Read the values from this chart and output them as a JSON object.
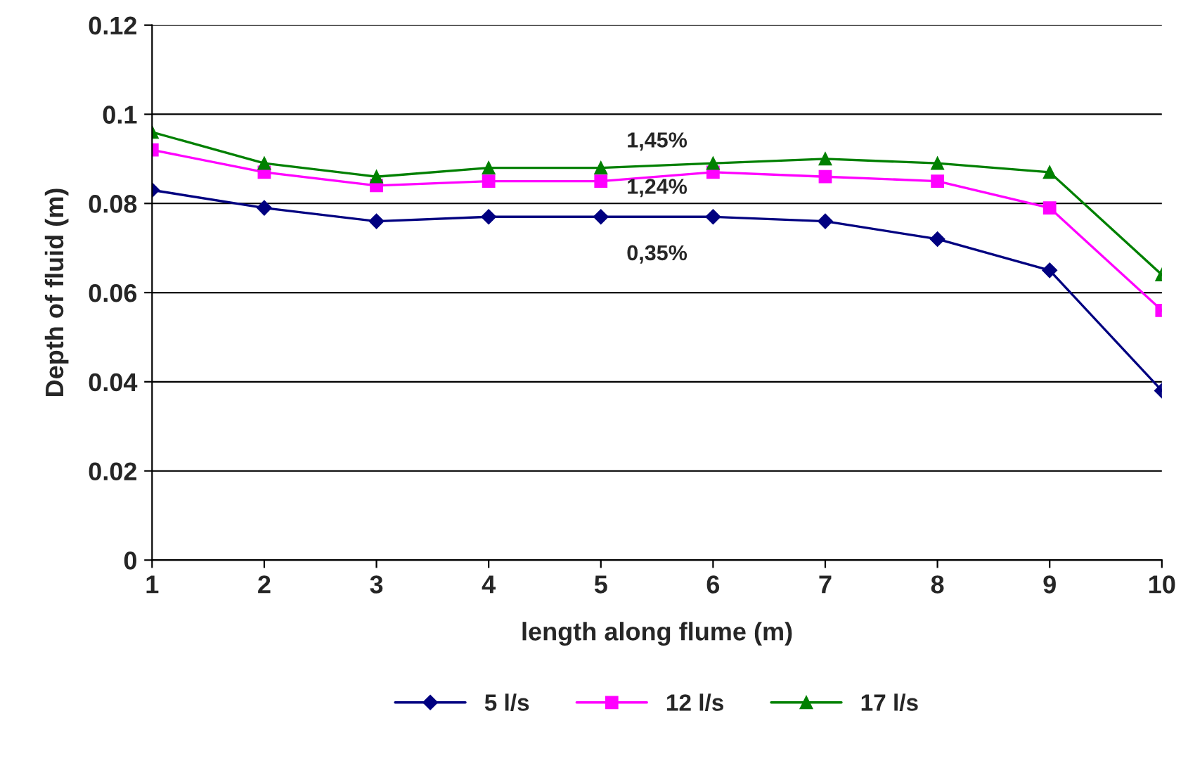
{
  "chart_data": {
    "type": "line",
    "xlabel": "length along flume (m)",
    "ylabel": "Depth of fluid (m)",
    "x": [
      1,
      2,
      3,
      4,
      5,
      6,
      7,
      8,
      9,
      10
    ],
    "series": [
      {
        "name": "5 l/s",
        "color": "#000080",
        "marker": "diamond",
        "values": [
          0.083,
          0.079,
          0.076,
          0.077,
          0.077,
          0.077,
          0.076,
          0.072,
          0.065,
          0.038
        ]
      },
      {
        "name": "12 l/s",
        "color": "#ff00ff",
        "marker": "square",
        "values": [
          0.092,
          0.087,
          0.084,
          0.085,
          0.085,
          0.087,
          0.086,
          0.085,
          0.079,
          0.056
        ]
      },
      {
        "name": "17 l/s",
        "color": "#008000",
        "marker": "triangle",
        "values": [
          0.096,
          0.089,
          0.086,
          0.088,
          0.088,
          0.089,
          0.09,
          0.089,
          0.087,
          0.064
        ]
      }
    ],
    "annotations": [
      "1,45%",
      "1,24%",
      "0,35%"
    ],
    "xlim": [
      1,
      10
    ],
    "xticks": [
      1,
      2,
      3,
      4,
      5,
      6,
      7,
      8,
      9,
      10
    ],
    "ylim": [
      0,
      0.12
    ],
    "yticks": [
      0,
      0.02,
      0.04,
      0.06,
      0.08,
      {
        "value": 0.1,
        "label": "0.1"
      },
      0.12
    ],
    "grid": "y",
    "legend": "bottom",
    "line_style": "solid"
  }
}
